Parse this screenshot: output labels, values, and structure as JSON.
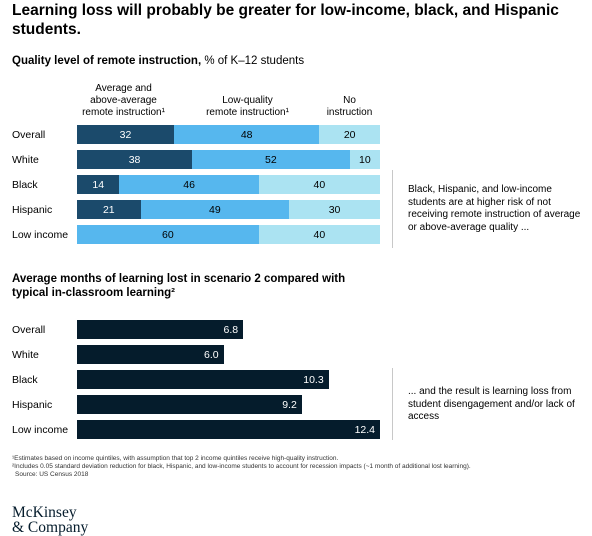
{
  "title": "Learning loss will probably be greater for low-income, black, and Hispanic students.",
  "chart_data": [
    {
      "type": "bar",
      "stacked": true,
      "orientation": "horizontal",
      "title_bold": "Quality level of remote instruction,",
      "title_rest": " % of K–12 students",
      "categories": [
        "Overall",
        "White",
        "Black",
        "Hispanic",
        "Low income"
      ],
      "series": [
        {
          "name": "Average and above-average remote instruction¹",
          "header_lines": [
            "Average and",
            "above-average",
            "remote instruction¹"
          ],
          "color": "#1b4a6b",
          "values": [
            32,
            38,
            14,
            21,
            null
          ],
          "labels": [
            "32",
            "38",
            "14",
            "21",
            ""
          ]
        },
        {
          "name": "Low-quality remote instruction¹",
          "header_lines": [
            "Low-quality",
            "remote instruction¹"
          ],
          "color": "#56b7ee",
          "values": [
            48,
            52,
            46,
            49,
            60
          ],
          "labels": [
            "48",
            "52",
            "46",
            "49",
            "60"
          ]
        },
        {
          "name": "No instruction",
          "header_lines": [
            "No",
            "instruction"
          ],
          "color": "#abe3f2",
          "values": [
            20,
            10,
            40,
            30,
            40
          ],
          "labels": [
            "20",
            "10",
            "40",
            "30",
            "40"
          ]
        }
      ],
      "xlim": [
        0,
        100
      ],
      "annotation": "Black, Hispanic, and low-income students are at higher risk of not receiving remote instruction of average or above-average quality ..."
    },
    {
      "type": "bar",
      "orientation": "horizontal",
      "title_lines": [
        "Average months of learning lost in scenario 2 compared with",
        "typical in-classroom learning²"
      ],
      "categories": [
        "Overall",
        "White",
        "Black",
        "Hispanic",
        "Low income"
      ],
      "values": [
        6.8,
        6.0,
        10.3,
        9.2,
        12.4
      ],
      "labels": [
        "6.8",
        "6.0",
        "10.3",
        "9.2",
        "12.4"
      ],
      "color": "#051c2c",
      "xlim": [
        0,
        12.4
      ],
      "annotation": "... and the result is learning loss from student disengagement and/or lack of access"
    }
  ],
  "footnotes": [
    "¹Estimates based on income quintiles, with assumption that top 2 income quintiles receive high-quality instruction.",
    "²Includes 0.05 standard deviation reduction for black, Hispanic, and low-income students to account for recession impacts (~1 month of additional lost learning).",
    "Source: US Census 2018"
  ],
  "logo": {
    "line1": "McKinsey",
    "line2": "& Company"
  }
}
